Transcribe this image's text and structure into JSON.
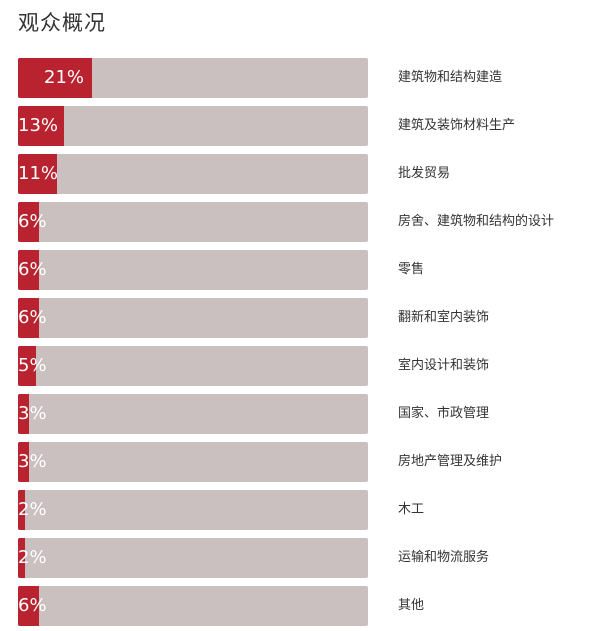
{
  "title": "观众概况",
  "colors": {
    "bar_fill": "#b8232f",
    "bar_track": "#c9c0bf",
    "text": "#333333",
    "pct_text": "#ffffff"
  },
  "chart_data": {
    "type": "bar",
    "orientation": "horizontal",
    "title": "观众概况",
    "xlim": [
      0,
      100
    ],
    "grid": false,
    "legend": "none",
    "categories": [
      "建筑物和结构建造",
      "建筑及装饰材料生产",
      "批发贸易",
      "房舍、建筑物和结构的设计",
      "零售",
      "翻新和室内装饰",
      "室内设计和装饰",
      "国家、市政管理",
      "房地产管理及维护",
      "木工",
      "运输和物流服务",
      "其他"
    ],
    "values": [
      21,
      13,
      11,
      6,
      6,
      6,
      5,
      3,
      3,
      2,
      2,
      6
    ],
    "value_labels": [
      "21%",
      "13%",
      "11%",
      "6%",
      "6%",
      "6%",
      "5%",
      "3%",
      "3%",
      "2%",
      "2%",
      "6%"
    ]
  }
}
